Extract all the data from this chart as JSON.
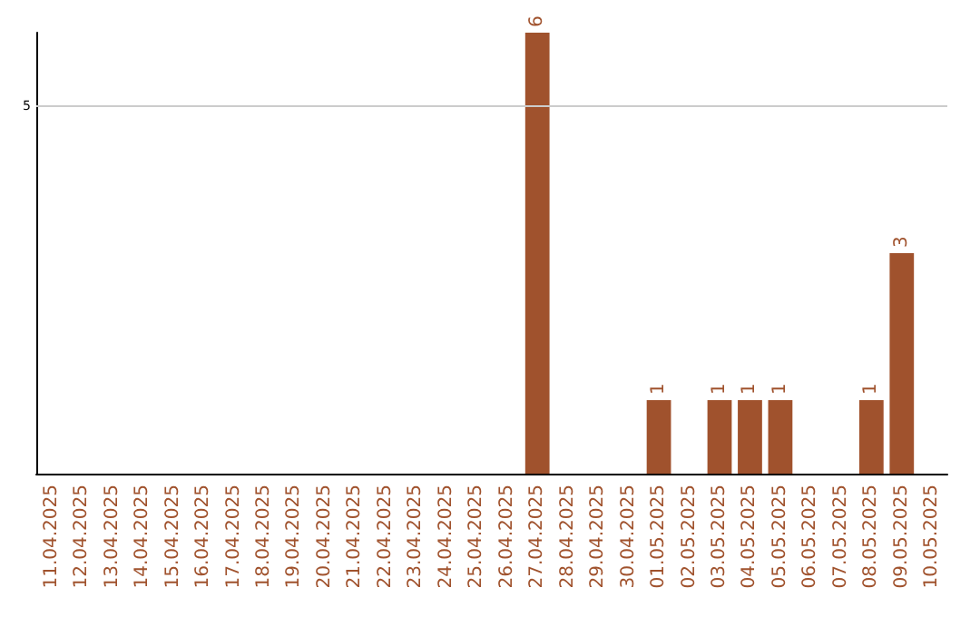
{
  "chart_data": {
    "type": "bar",
    "data_labels": true,
    "ylim": [
      0,
      6
    ],
    "categories": [
      "11.04.2025",
      "12.04.2025",
      "13.04.2025",
      "14.04.2025",
      "15.04.2025",
      "16.04.2025",
      "17.04.2025",
      "18.04.2025",
      "19.04.2025",
      "20.04.2025",
      "21.04.2025",
      "22.04.2025",
      "23.04.2025",
      "24.04.2025",
      "25.04.2025",
      "26.04.2025",
      "27.04.2025",
      "28.04.2025",
      "29.04.2025",
      "30.04.2025",
      "01.05.2025",
      "02.05.2025",
      "03.05.2025",
      "04.05.2025",
      "05.05.2025",
      "06.05.2025",
      "07.05.2025",
      "08.05.2025",
      "09.05.2025",
      "10.05.2025"
    ],
    "values": [
      null,
      null,
      null,
      null,
      null,
      null,
      null,
      null,
      null,
      null,
      null,
      null,
      null,
      null,
      null,
      null,
      6,
      null,
      null,
      null,
      1,
      null,
      1,
      1,
      1,
      null,
      null,
      1,
      3,
      null
    ],
    "color": "#a0522d",
    "ref_lines": [
      {
        "axis": "y",
        "value": 5,
        "label": "5",
        "color": "#cccccc"
      }
    ]
  }
}
